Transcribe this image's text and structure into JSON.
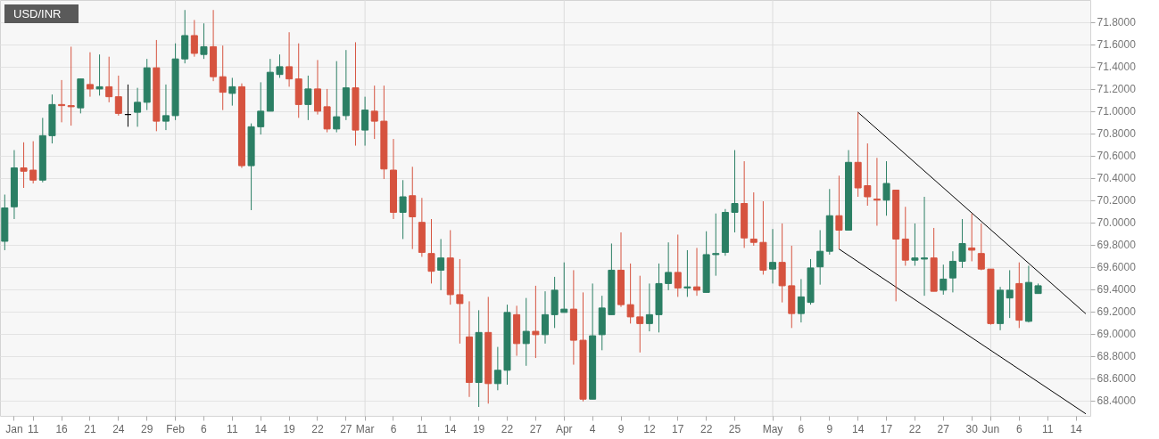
{
  "chart_data": {
    "type": "candlestick",
    "title": "USD/INR",
    "categories": [
      null,
      "Jan",
      null,
      "11",
      null,
      null,
      "16",
      null,
      null,
      "21",
      null,
      null,
      "24",
      null,
      null,
      "29",
      null,
      null,
      "Feb",
      null,
      null,
      "6",
      null,
      null,
      "11",
      null,
      null,
      "14",
      null,
      null,
      "19",
      null,
      null,
      "22",
      null,
      null,
      "27",
      null,
      "Mar",
      null,
      null,
      "6",
      null,
      null,
      "11",
      null,
      null,
      "14",
      null,
      null,
      "19",
      null,
      null,
      "22",
      null,
      null,
      "27",
      null,
      null,
      "Apr",
      null,
      null,
      "4",
      null,
      null,
      "9",
      null,
      null,
      "12",
      null,
      null,
      "17",
      null,
      null,
      "22",
      null,
      null,
      "25",
      null,
      null,
      null,
      "May",
      null,
      null,
      "6",
      null,
      null,
      "9",
      null,
      null,
      "14",
      null,
      null,
      "17",
      null,
      null,
      "22",
      null,
      null,
      "27",
      null,
      null,
      "30",
      null,
      "Jun",
      null,
      null,
      "6",
      null,
      null,
      "11",
      null,
      null,
      "14",
      null
    ],
    "ohlc": [
      [
        69.83,
        70.25,
        69.75,
        70.13
      ],
      [
        70.14,
        70.65,
        70.03,
        70.49
      ],
      [
        70.49,
        70.72,
        70.31,
        70.46
      ],
      [
        70.47,
        70.73,
        70.35,
        70.38
      ],
      [
        70.38,
        70.94,
        70.36,
        70.78
      ],
      [
        70.78,
        71.15,
        70.71,
        71.06
      ],
      [
        71.06,
        71.28,
        70.9,
        71.05
      ],
      [
        71.05,
        71.58,
        70.87,
        71.04
      ],
      [
        71.03,
        71.29,
        70.98,
        71.29
      ],
      [
        71.24,
        71.53,
        71.13,
        71.2
      ],
      [
        71.2,
        71.51,
        71.14,
        71.22
      ],
      [
        71.22,
        71.49,
        71.08,
        71.13
      ],
      [
        71.13,
        71.32,
        70.96,
        70.98
      ],
      [
        70.97,
        71.24,
        70.86,
        70.97
      ],
      [
        70.99,
        71.21,
        70.86,
        71.08
      ],
      [
        71.08,
        71.47,
        71.01,
        71.39
      ],
      [
        71.39,
        71.64,
        70.82,
        70.91
      ],
      [
        70.91,
        71.24,
        70.83,
        70.96
      ],
      [
        70.96,
        71.61,
        70.92,
        71.47
      ],
      [
        71.47,
        71.91,
        71.43,
        71.68
      ],
      [
        71.68,
        71.82,
        71.49,
        71.52
      ],
      [
        71.51,
        71.79,
        71.47,
        71.58
      ],
      [
        71.58,
        71.91,
        71.27,
        71.31
      ],
      [
        71.31,
        71.59,
        71.01,
        71.17
      ],
      [
        71.16,
        71.3,
        71.05,
        71.22
      ],
      [
        71.22,
        71.25,
        70.49,
        70.51
      ],
      [
        70.51,
        70.89,
        70.11,
        70.86
      ],
      [
        70.86,
        71.26,
        70.79,
        71.0
      ],
      [
        71.0,
        71.47,
        71.0,
        71.35
      ],
      [
        71.33,
        71.51,
        71.3,
        71.4
      ],
      [
        71.4,
        71.71,
        71.22,
        71.29
      ],
      [
        71.29,
        71.61,
        70.94,
        71.06
      ],
      [
        71.06,
        71.32,
        70.92,
        71.2
      ],
      [
        71.2,
        71.46,
        70.97,
        71.0
      ],
      [
        71.04,
        71.2,
        70.81,
        70.84
      ],
      [
        70.84,
        71.45,
        70.81,
        70.95
      ],
      [
        70.96,
        71.55,
        70.92,
        71.21
      ],
      [
        71.21,
        71.62,
        70.69,
        70.83
      ],
      [
        70.83,
        71.13,
        70.69,
        71.01
      ],
      [
        71.0,
        71.23,
        70.75,
        70.91
      ],
      [
        70.91,
        71.23,
        70.39,
        70.48
      ],
      [
        70.47,
        70.75,
        70.03,
        70.09
      ],
      [
        70.09,
        70.38,
        69.85,
        70.23
      ],
      [
        70.24,
        70.5,
        69.76,
        70.05
      ],
      [
        70.0,
        70.22,
        69.69,
        69.73
      ],
      [
        69.72,
        70.03,
        69.45,
        69.56
      ],
      [
        69.57,
        69.85,
        69.39,
        69.68
      ],
      [
        69.68,
        69.93,
        69.26,
        69.35
      ],
      [
        69.35,
        69.67,
        68.91,
        69.27
      ],
      [
        68.97,
        69.29,
        68.43,
        68.56
      ],
      [
        68.56,
        69.21,
        68.34,
        69.01
      ],
      [
        69.01,
        69.33,
        68.37,
        68.55
      ],
      [
        68.55,
        68.88,
        68.49,
        68.67
      ],
      [
        68.67,
        69.26,
        68.54,
        69.19
      ],
      [
        69.17,
        69.25,
        68.8,
        68.91
      ],
      [
        68.91,
        69.32,
        68.71,
        69.02
      ],
      [
        69.02,
        69.43,
        68.78,
        68.99
      ],
      [
        68.99,
        69.38,
        68.91,
        69.17
      ],
      [
        69.17,
        69.51,
        69.05,
        69.39
      ],
      [
        69.19,
        69.64,
        69.19,
        69.22
      ],
      [
        69.22,
        69.57,
        68.72,
        68.94
      ],
      [
        68.94,
        69.37,
        68.39,
        68.41
      ],
      [
        68.41,
        69.45,
        68.41,
        68.98
      ],
      [
        68.99,
        69.34,
        68.85,
        69.23
      ],
      [
        69.17,
        69.81,
        69.17,
        69.57
      ],
      [
        69.57,
        69.91,
        69.24,
        69.26
      ],
      [
        69.26,
        69.63,
        69.09,
        69.15
      ],
      [
        69.15,
        69.52,
        68.83,
        69.09
      ],
      [
        69.09,
        69.45,
        69.02,
        69.17
      ],
      [
        69.17,
        69.63,
        69.01,
        69.45
      ],
      [
        69.45,
        69.82,
        69.39,
        69.55
      ],
      [
        69.55,
        69.89,
        69.33,
        69.41
      ],
      [
        69.41,
        69.75,
        69.33,
        69.42
      ],
      [
        69.42,
        69.77,
        69.34,
        69.39
      ],
      [
        69.37,
        69.92,
        69.37,
        69.71
      ],
      [
        69.71,
        70.08,
        69.52,
        69.72
      ],
      [
        69.73,
        70.12,
        69.7,
        70.09
      ],
      [
        70.09,
        70.65,
        69.91,
        70.17
      ],
      [
        70.17,
        70.55,
        69.77,
        69.86
      ],
      [
        69.85,
        70.27,
        69.79,
        69.82
      ],
      [
        69.82,
        70.19,
        69.53,
        69.57
      ],
      [
        69.58,
        69.94,
        69.45,
        69.64
      ],
      [
        69.64,
        69.99,
        69.28,
        69.43
      ],
      [
        69.43,
        69.79,
        69.05,
        69.18
      ],
      [
        69.18,
        69.49,
        69.1,
        69.33
      ],
      [
        69.28,
        69.67,
        69.26,
        69.59
      ],
      [
        69.6,
        69.93,
        69.44,
        69.74
      ],
      [
        69.74,
        70.3,
        69.71,
        70.06
      ],
      [
        70.06,
        70.42,
        69.76,
        69.93
      ],
      [
        69.93,
        70.65,
        69.93,
        70.54
      ],
      [
        70.54,
        70.99,
        70.23,
        70.31
      ],
      [
        70.33,
        70.71,
        70.15,
        70.23
      ],
      [
        70.21,
        70.58,
        69.97,
        70.2
      ],
      [
        70.2,
        70.55,
        70.06,
        70.35
      ],
      [
        70.29,
        70.29,
        69.29,
        69.85
      ],
      [
        69.85,
        70.14,
        69.61,
        69.66
      ],
      [
        69.66,
        69.99,
        69.61,
        69.68
      ],
      [
        69.67,
        70.23,
        69.34,
        69.68
      ],
      [
        69.68,
        69.95,
        69.38,
        69.38
      ],
      [
        69.39,
        69.62,
        69.35,
        69.49
      ],
      [
        69.5,
        69.74,
        69.37,
        69.65
      ],
      [
        69.65,
        70.03,
        69.59,
        69.81
      ],
      [
        69.77,
        70.08,
        69.65,
        69.75
      ],
      [
        69.72,
        69.99,
        69.57,
        69.58
      ],
      [
        69.58,
        69.58,
        69.08,
        69.09
      ],
      [
        69.09,
        69.42,
        69.03,
        69.39
      ],
      [
        69.32,
        69.57,
        69.14,
        69.39
      ],
      [
        69.45,
        69.64,
        69.05,
        69.12
      ],
      [
        69.11,
        69.61,
        69.1,
        69.46
      ],
      [
        69.36,
        69.45,
        69.36,
        69.43
      ],
      null,
      null,
      null,
      null,
      null
    ],
    "colors": [
      "#2b7f64",
      "#2b7f64",
      "#d6533f",
      "#d6533f",
      "#2b7f64",
      "#2b7f64",
      "#d6533f",
      "#d6533f",
      "#2b7f64",
      "#d6533f",
      "#2b7f64",
      "#d6533f",
      "#d6533f",
      "#000000",
      "#2b7f64",
      "#2b7f64",
      "#d6533f",
      "#2b7f64",
      "#2b7f64",
      "#2b7f64",
      "#d6533f",
      "#2b7f64",
      "#d6533f",
      "#d6533f",
      "#2b7f64",
      "#d6533f",
      "#2b7f64",
      "#2b7f64",
      "#2b7f64",
      "#2b7f64",
      "#d6533f",
      "#d6533f",
      "#2b7f64",
      "#d6533f",
      "#d6533f",
      "#2b7f64",
      "#2b7f64",
      "#d6533f",
      "#2b7f64",
      "#d6533f",
      "#d6533f",
      "#d6533f",
      "#2b7f64",
      "#d6533f",
      "#d6533f",
      "#d6533f",
      "#2b7f64",
      "#d6533f",
      "#d6533f",
      "#d6533f",
      "#2b7f64",
      "#d6533f",
      "#2b7f64",
      "#2b7f64",
      "#d6533f",
      "#2b7f64",
      "#d6533f",
      "#2b7f64",
      "#2b7f64",
      "#2b7f64",
      "#d6533f",
      "#d6533f",
      "#2b7f64",
      "#2b7f64",
      "#2b7f64",
      "#d6533f",
      "#d6533f",
      "#d6533f",
      "#2b7f64",
      "#2b7f64",
      "#2b7f64",
      "#d6533f",
      "#2b7f64",
      "#d6533f",
      "#2b7f64",
      "#2b7f64",
      "#2b7f64",
      "#2b7f64",
      "#d6533f",
      "#d6533f",
      "#d6533f",
      "#2b7f64",
      "#d6533f",
      "#d6533f",
      "#2b7f64",
      "#2b7f64",
      "#2b7f64",
      "#2b7f64",
      "#d6533f",
      "#2b7f64",
      "#d6533f",
      "#d6533f",
      "#d6533f",
      "#2b7f64",
      "#d6533f",
      "#d6533f",
      "#2b7f64",
      "#2b7f64",
      "#d6533f",
      "#2b7f64",
      "#2b7f64",
      "#2b7f64",
      "#d6533f",
      "#d6533f",
      "#d6533f",
      "#2b7f64",
      "#2b7f64",
      "#d6533f",
      "#2b7f64",
      "#2b7f64",
      null,
      null,
      null,
      null,
      null
    ],
    "series": [
      {
        "type": "line",
        "color": "#000000",
        "values": [
          null,
          null,
          null,
          null,
          null,
          null,
          null,
          null,
          null,
          null,
          null,
          null,
          null,
          null,
          null,
          null,
          null,
          null,
          null,
          null,
          null,
          null,
          null,
          null,
          null,
          null,
          null,
          null,
          null,
          null,
          null,
          null,
          null,
          null,
          null,
          null,
          null,
          null,
          null,
          null,
          null,
          null,
          null,
          null,
          null,
          null,
          null,
          null,
          null,
          null,
          null,
          null,
          null,
          null,
          null,
          null,
          null,
          null,
          null,
          null,
          null,
          null,
          null,
          null,
          null,
          null,
          null,
          null,
          null,
          null,
          null,
          null,
          null,
          null,
          null,
          null,
          null,
          null,
          null,
          null,
          null,
          null,
          null,
          null,
          null,
          null,
          null,
          null,
          null,
          null,
          70.99,
          null,
          null,
          null,
          null,
          null,
          null,
          null,
          null,
          null,
          null,
          null,
          null,
          null,
          null,
          null,
          null,
          null,
          null,
          null,
          null,
          null,
          null,
          null,
          69.18
        ]
      },
      {
        "type": "line",
        "color": "#000000",
        "values": [
          null,
          null,
          null,
          null,
          null,
          null,
          null,
          null,
          null,
          null,
          null,
          null,
          null,
          null,
          null,
          null,
          null,
          null,
          null,
          null,
          null,
          null,
          null,
          null,
          null,
          null,
          null,
          null,
          null,
          null,
          null,
          null,
          null,
          null,
          null,
          null,
          null,
          null,
          null,
          null,
          null,
          null,
          null,
          null,
          null,
          null,
          null,
          null,
          null,
          null,
          null,
          null,
          null,
          null,
          null,
          null,
          null,
          null,
          null,
          null,
          null,
          null,
          null,
          null,
          null,
          null,
          null,
          null,
          null,
          null,
          null,
          null,
          null,
          null,
          null,
          null,
          null,
          null,
          null,
          null,
          null,
          null,
          null,
          null,
          null,
          null,
          null,
          null,
          69.76,
          null,
          null,
          null,
          null,
          null,
          null,
          null,
          null,
          null,
          null,
          null,
          null,
          null,
          null,
          null,
          null,
          null,
          null,
          null,
          null,
          null,
          null,
          null,
          null,
          null,
          68.28
        ]
      }
    ],
    "ylim": [
      68.26,
      72.0
    ],
    "yticks": [
      {
        "value": 68.4,
        "label": "68.4000"
      },
      {
        "value": 68.6,
        "label": "68.6000"
      },
      {
        "value": 68.8,
        "label": "68.8000"
      },
      {
        "value": 69.0,
        "label": "69.0000"
      },
      {
        "value": 69.2,
        "label": "69.2000"
      },
      {
        "value": 69.4,
        "label": "69.4000"
      },
      {
        "value": 69.6,
        "label": "69.6000"
      },
      {
        "value": 69.8,
        "label": "69.8000"
      },
      {
        "value": 70.0,
        "label": "70.0000"
      },
      {
        "value": 70.2,
        "label": "70.2000"
      },
      {
        "value": 70.4,
        "label": "70.4000"
      },
      {
        "value": 70.6,
        "label": "70.6000"
      },
      {
        "value": 70.8,
        "label": "70.8000"
      },
      {
        "value": 71.0,
        "label": "71.0000"
      },
      {
        "value": 71.2,
        "label": "71.2000"
      },
      {
        "value": 71.4,
        "label": "71.4000"
      },
      {
        "value": 71.6,
        "label": "71.6000"
      },
      {
        "value": 71.8,
        "label": "71.8000"
      }
    ],
    "grid": "y",
    "ref_lines": [
      {
        "axis": "x",
        "value": "Feb",
        "color": "#dcdcdc"
      },
      {
        "axis": "x",
        "value": "Mar",
        "color": "#dcdcdc"
      },
      {
        "axis": "x",
        "value": "Apr",
        "color": "#dcdcdc"
      },
      {
        "axis": "x",
        "value": "May",
        "color": "#dcdcdc"
      },
      {
        "axis": "x",
        "value": "Jun",
        "color": "#dcdcdc"
      }
    ]
  }
}
